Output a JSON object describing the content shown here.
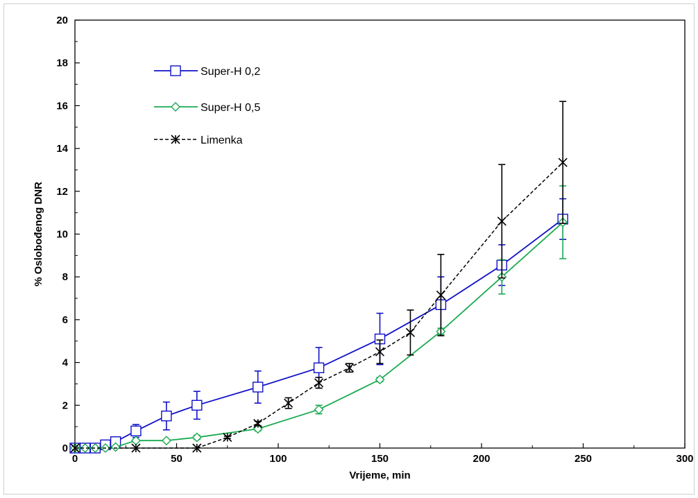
{
  "chart_data": {
    "type": "line",
    "title": "",
    "xlabel": "Vrijeme, min",
    "ylabel": "% Oslobođenog DNR",
    "xlim": [
      0,
      300
    ],
    "ylim": [
      0,
      20
    ],
    "xticks": [
      0,
      50,
      100,
      150,
      200,
      250,
      300
    ],
    "yticks": [
      0,
      2,
      4,
      6,
      8,
      10,
      12,
      14,
      16,
      18,
      20
    ],
    "grid": false,
    "legend_position": "top-left",
    "series": [
      {
        "name": "Super-H 0,2",
        "color": "#1010c8",
        "marker": "square",
        "line": "solid",
        "x": [
          0,
          5,
          10,
          15,
          20,
          30,
          45,
          60,
          90,
          120,
          150,
          180,
          210,
          240
        ],
        "y": [
          0,
          0,
          0,
          0.15,
          0.3,
          0.8,
          1.5,
          2.0,
          2.85,
          3.75,
          5.1,
          6.7,
          8.55,
          10.7
        ],
        "err": [
          0,
          0,
          0,
          0.1,
          0.15,
          0.3,
          0.65,
          0.65,
          0.75,
          0.95,
          1.2,
          1.3,
          0.95,
          0.95
        ]
      },
      {
        "name": "Super-H 0,5",
        "color": "#1aaa50",
        "marker": "diamond",
        "line": "solid",
        "x": [
          0,
          5,
          10,
          15,
          20,
          30,
          45,
          60,
          90,
          120,
          150,
          180,
          210,
          240
        ],
        "y": [
          0,
          0,
          0,
          0,
          0.05,
          0.35,
          0.35,
          0.5,
          0.9,
          1.8,
          3.2,
          5.45,
          8.0,
          10.55
        ],
        "err": [
          0,
          0,
          0,
          0,
          0,
          0.05,
          0.05,
          0.1,
          0.1,
          0.2,
          0.1,
          0.15,
          0.8,
          1.7
        ]
      },
      {
        "name": "Limenka",
        "color": "#000000",
        "marker": "asterisk",
        "line": "dashed",
        "x": [
          0,
          30,
          60,
          75,
          90,
          105,
          120,
          135,
          150,
          165,
          180,
          210,
          240
        ],
        "y": [
          0,
          0,
          0,
          0.5,
          1.15,
          2.1,
          3.05,
          3.75,
          4.5,
          5.4,
          7.15,
          10.6,
          13.35
        ],
        "err": [
          0,
          0,
          0,
          0.05,
          0.1,
          0.25,
          0.25,
          0.2,
          0.55,
          1.05,
          1.9,
          2.65,
          2.85
        ]
      }
    ]
  }
}
